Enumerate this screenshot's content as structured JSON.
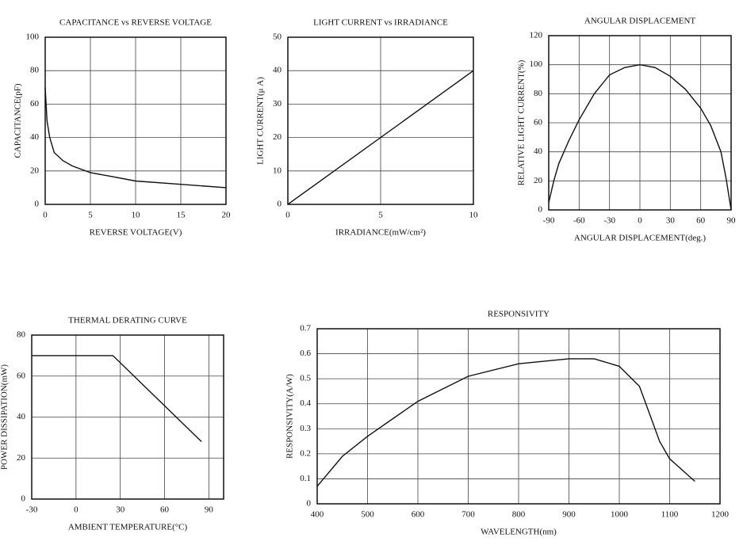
{
  "chart_data": [
    {
      "type": "line",
      "title": "CAPACITANCE vs REVERSE VOLTAGE",
      "xlabel": "REVERSE VOLTAGE(V)",
      "ylabel": "CAPACITANCE(pF)",
      "x": [
        0,
        0.2,
        0.5,
        1,
        2,
        3,
        5,
        7,
        10,
        15,
        20
      ],
      "values": [
        70,
        50,
        40,
        31,
        26,
        23,
        19,
        17,
        14,
        12,
        10
      ],
      "color": "#111111",
      "xlim": [
        0,
        20
      ],
      "ylim": [
        0,
        100
      ],
      "xticks": [
        0,
        5,
        10,
        15,
        20
      ],
      "yticks": [
        0,
        20,
        40,
        60,
        80,
        100
      ],
      "grid": true
    },
    {
      "type": "line",
      "title": "LIGHT CURRENT vs IRRADIANCE",
      "xlabel": "IRRADIANCE(mW/cm²)",
      "ylabel": "LIGHT CURRENT(μ A)",
      "x": [
        0,
        10
      ],
      "values": [
        0,
        40
      ],
      "color": "#111111",
      "xlim": [
        0,
        10
      ],
      "ylim": [
        0,
        50
      ],
      "xticks": [
        0,
        5,
        10
      ],
      "yticks": [
        0,
        10,
        20,
        30,
        40,
        50
      ],
      "grid": true
    },
    {
      "type": "line",
      "title": "ANGULAR DISPLACEMENT",
      "xlabel": "ANGULAR DISPLACEMENT(deg.)",
      "ylabel": "RELATIVE LIGHT CURRENT(%)",
      "x": [
        -90,
        -85,
        -80,
        -70,
        -60,
        -45,
        -30,
        -15,
        0,
        15,
        30,
        45,
        60,
        70,
        80,
        85,
        90
      ],
      "values": [
        5,
        20,
        32,
        48,
        62,
        80,
        93,
        98,
        100,
        98,
        92,
        83,
        70,
        58,
        40,
        22,
        0
      ],
      "color": "#111111",
      "xlim": [
        -90,
        90
      ],
      "ylim": [
        0,
        120
      ],
      "xticks": [
        -90,
        -60,
        -30,
        0,
        30,
        60,
        90
      ],
      "yticks": [
        0,
        20,
        40,
        60,
        80,
        100,
        120
      ],
      "grid": true
    },
    {
      "type": "line",
      "title": "THERMAL DERATING CURVE",
      "xlabel": "AMBIENT TEMPERATURE(°C)",
      "ylabel": "POWER DISSIPATION(mW)",
      "x": [
        -30,
        25,
        85
      ],
      "values": [
        70,
        70,
        28
      ],
      "color": "#111111",
      "xlim": [
        -30,
        100
      ],
      "ylim": [
        0,
        80
      ],
      "xticks": [
        -30,
        0,
        30,
        60,
        90
      ],
      "yticks": [
        0,
        20,
        40,
        60,
        80
      ],
      "grid": true
    },
    {
      "type": "line",
      "title": "RESPONSIVITY",
      "xlabel": "WAVELENGTH(nm)",
      "ylabel": "RESPONSIVITY(A/W)",
      "x": [
        400,
        450,
        500,
        600,
        700,
        800,
        900,
        950,
        1000,
        1040,
        1060,
        1080,
        1100,
        1150
      ],
      "values": [
        0.07,
        0.19,
        0.27,
        0.41,
        0.51,
        0.56,
        0.58,
        0.58,
        0.55,
        0.47,
        0.36,
        0.25,
        0.18,
        0.09
      ],
      "color": "#111111",
      "xlim": [
        400,
        1200
      ],
      "ylim": [
        0,
        0.7
      ],
      "xticks": [
        400,
        500,
        600,
        700,
        800,
        900,
        1000,
        1100,
        1200
      ],
      "yticks": [
        0,
        0.1,
        0.2,
        0.3,
        0.4,
        0.5,
        0.6,
        0.7
      ],
      "grid": true
    }
  ]
}
